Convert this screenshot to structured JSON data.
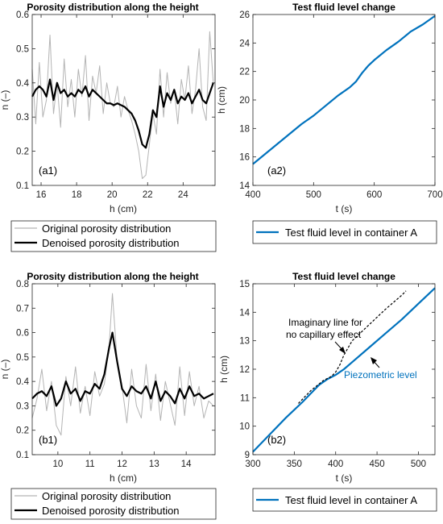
{
  "chart_data": [
    {
      "type": "line",
      "panel_label": "(a1)",
      "title": "Porosity distribution along the height",
      "xlabel": "h (cm)",
      "ylabel": "n (–)",
      "xlim": [
        15.5,
        25.8
      ],
      "ylim": [
        0.1,
        0.6
      ],
      "xticks": [
        16,
        18,
        20,
        22,
        24
      ],
      "yticks": [
        0.1,
        0.2,
        0.3,
        0.4,
        0.5,
        0.6
      ],
      "grid": false,
      "legend": "below",
      "series": [
        {
          "name": "Original porosity distribution",
          "color": "#b4b4b4",
          "x": [
            15.5,
            15.7,
            15.9,
            16.1,
            16.3,
            16.5,
            16.7,
            16.9,
            17.1,
            17.3,
            17.5,
            17.7,
            17.9,
            18.1,
            18.3,
            18.5,
            18.7,
            18.9,
            19.1,
            19.3,
            19.5,
            19.7,
            19.9,
            20.1,
            20.3,
            20.5,
            20.7,
            20.9,
            21.1,
            21.3,
            21.5,
            21.7,
            21.9,
            22.1,
            22.3,
            22.5,
            22.7,
            22.9,
            23.1,
            23.3,
            23.5,
            23.7,
            23.9,
            24.1,
            24.3,
            24.5,
            24.7,
            24.9,
            25.1,
            25.3,
            25.5,
            25.7
          ],
          "y": [
            0.44,
            0.28,
            0.46,
            0.3,
            0.35,
            0.54,
            0.31,
            0.4,
            0.27,
            0.47,
            0.33,
            0.41,
            0.3,
            0.44,
            0.36,
            0.48,
            0.29,
            0.42,
            0.37,
            0.45,
            0.31,
            0.4,
            0.34,
            0.33,
            0.39,
            0.3,
            0.36,
            0.32,
            0.29,
            0.25,
            0.2,
            0.12,
            0.13,
            0.22,
            0.31,
            0.25,
            0.44,
            0.3,
            0.43,
            0.34,
            0.38,
            0.28,
            0.41,
            0.35,
            0.45,
            0.31,
            0.38,
            0.5,
            0.33,
            0.29,
            0.55,
            0.4
          ]
        },
        {
          "name": "Denoised porosity distribution",
          "color": "#000000",
          "x": [
            15.5,
            15.7,
            15.9,
            16.1,
            16.3,
            16.5,
            16.7,
            16.9,
            17.1,
            17.3,
            17.5,
            17.7,
            17.9,
            18.1,
            18.3,
            18.5,
            18.7,
            18.9,
            19.1,
            19.3,
            19.5,
            19.7,
            19.9,
            20.1,
            20.3,
            20.5,
            20.7,
            20.9,
            21.1,
            21.3,
            21.5,
            21.7,
            21.9,
            22.1,
            22.3,
            22.5,
            22.7,
            22.9,
            23.1,
            23.3,
            23.5,
            23.7,
            23.9,
            24.1,
            24.3,
            24.5,
            24.7,
            24.9,
            25.1,
            25.3,
            25.5,
            25.7
          ],
          "y": [
            0.36,
            0.38,
            0.39,
            0.38,
            0.36,
            0.41,
            0.35,
            0.4,
            0.37,
            0.38,
            0.36,
            0.37,
            0.36,
            0.38,
            0.37,
            0.39,
            0.36,
            0.38,
            0.37,
            0.36,
            0.35,
            0.34,
            0.34,
            0.335,
            0.34,
            0.335,
            0.33,
            0.32,
            0.31,
            0.29,
            0.26,
            0.22,
            0.21,
            0.25,
            0.32,
            0.3,
            0.39,
            0.33,
            0.37,
            0.35,
            0.38,
            0.34,
            0.36,
            0.35,
            0.37,
            0.34,
            0.36,
            0.38,
            0.35,
            0.34,
            0.37,
            0.4
          ]
        }
      ]
    },
    {
      "type": "line",
      "panel_label": "(a2)",
      "title": "Test fluid level change",
      "xlabel": "t (s)",
      "ylabel": "h (cm)",
      "xlim": [
        400,
        700
      ],
      "ylim": [
        14,
        26
      ],
      "xticks": [
        400,
        500,
        600,
        700
      ],
      "yticks": [
        14,
        16,
        18,
        20,
        22,
        24,
        26
      ],
      "grid": false,
      "legend": "below",
      "series": [
        {
          "name": "Test fluid level in container A",
          "color": "#0072BD",
          "x": [
            400,
            420,
            440,
            460,
            480,
            500,
            520,
            540,
            560,
            570,
            580,
            590,
            600,
            620,
            640,
            660,
            680,
            700
          ],
          "y": [
            15.5,
            16.2,
            16.9,
            17.6,
            18.3,
            18.9,
            19.6,
            20.3,
            20.9,
            21.3,
            21.9,
            22.4,
            22.8,
            23.5,
            24.1,
            24.8,
            25.3,
            25.9
          ]
        }
      ]
    },
    {
      "type": "line",
      "panel_label": "(b1)",
      "title": "Porosity distribution along the height",
      "xlabel": "h (cm)",
      "ylabel": "n (–)",
      "xlim": [
        9.2,
        14.9
      ],
      "ylim": [
        0.1,
        0.8
      ],
      "xticks": [
        10,
        11,
        12,
        13,
        14
      ],
      "yticks": [
        0.1,
        0.2,
        0.3,
        0.4,
        0.5,
        0.6,
        0.7,
        0.8
      ],
      "grid": false,
      "legend": "below",
      "series": [
        {
          "name": "Original porosity distribution",
          "color": "#b4b4b4",
          "x": [
            9.2,
            9.35,
            9.5,
            9.65,
            9.8,
            9.95,
            10.1,
            10.25,
            10.4,
            10.55,
            10.7,
            10.85,
            11.0,
            11.15,
            11.3,
            11.45,
            11.6,
            11.7,
            11.85,
            12.0,
            12.15,
            12.3,
            12.45,
            12.6,
            12.75,
            12.9,
            13.05,
            13.2,
            13.35,
            13.5,
            13.65,
            13.8,
            13.95,
            14.1,
            14.25,
            14.4,
            14.55,
            14.7,
            14.85
          ],
          "y": [
            0.25,
            0.33,
            0.45,
            0.28,
            0.4,
            0.22,
            0.18,
            0.42,
            0.3,
            0.46,
            0.27,
            0.38,
            0.26,
            0.44,
            0.34,
            0.39,
            0.55,
            0.76,
            0.48,
            0.38,
            0.23,
            0.45,
            0.3,
            0.25,
            0.47,
            0.28,
            0.43,
            0.24,
            0.4,
            0.31,
            0.22,
            0.46,
            0.26,
            0.44,
            0.3,
            0.38,
            0.25,
            0.32,
            0.3
          ]
        },
        {
          "name": "Denoised porosity distribution",
          "color": "#000000",
          "x": [
            9.2,
            9.35,
            9.5,
            9.65,
            9.8,
            9.95,
            10.1,
            10.25,
            10.4,
            10.55,
            10.7,
            10.85,
            11.0,
            11.15,
            11.3,
            11.45,
            11.6,
            11.7,
            11.85,
            12.0,
            12.15,
            12.3,
            12.45,
            12.6,
            12.75,
            12.9,
            13.05,
            13.2,
            13.35,
            13.5,
            13.65,
            13.8,
            13.95,
            14.1,
            14.25,
            14.4,
            14.55,
            14.7,
            14.85
          ],
          "y": [
            0.33,
            0.35,
            0.36,
            0.34,
            0.38,
            0.3,
            0.33,
            0.4,
            0.35,
            0.37,
            0.32,
            0.36,
            0.35,
            0.39,
            0.37,
            0.43,
            0.54,
            0.6,
            0.48,
            0.37,
            0.34,
            0.38,
            0.36,
            0.35,
            0.38,
            0.33,
            0.4,
            0.32,
            0.36,
            0.34,
            0.31,
            0.37,
            0.33,
            0.38,
            0.34,
            0.35,
            0.33,
            0.34,
            0.35
          ]
        }
      ]
    },
    {
      "type": "line",
      "panel_label": "(b2)",
      "title": "Test fluid level change",
      "xlabel": "t (s)",
      "ylabel": "h (cm)",
      "xlim": [
        300,
        520
      ],
      "ylim": [
        9,
        15
      ],
      "xticks": [
        300,
        350,
        400,
        450,
        500
      ],
      "yticks": [
        9,
        10,
        11,
        12,
        13,
        14,
        15
      ],
      "grid": false,
      "legend": "below",
      "series": [
        {
          "name": "Test fluid level in container A",
          "color": "#0072BD",
          "x": [
            300,
            320,
            340,
            360,
            380,
            390,
            400,
            410,
            420,
            440,
            460,
            480,
            500,
            520
          ],
          "y": [
            9.1,
            9.7,
            10.3,
            10.85,
            11.45,
            11.65,
            11.8,
            12.0,
            12.25,
            12.75,
            13.25,
            13.75,
            14.3,
            14.85
          ]
        },
        {
          "color": "#000000",
          "dashed": true,
          "x": [
            355,
            370,
            385,
            395,
            400,
            405,
            410,
            420,
            440,
            460,
            480,
            485
          ],
          "y": [
            10.8,
            11.25,
            11.6,
            11.75,
            11.9,
            12.15,
            12.5,
            13.0,
            13.55,
            14.1,
            14.6,
            14.75
          ]
        }
      ],
      "annotations": [
        {
          "text": "Imaginary line for",
          "color": "#000000"
        },
        {
          "text": "no capillary effect",
          "color": "#000000"
        },
        {
          "text": "Piezometric level",
          "color": "#0072BD"
        }
      ]
    }
  ]
}
